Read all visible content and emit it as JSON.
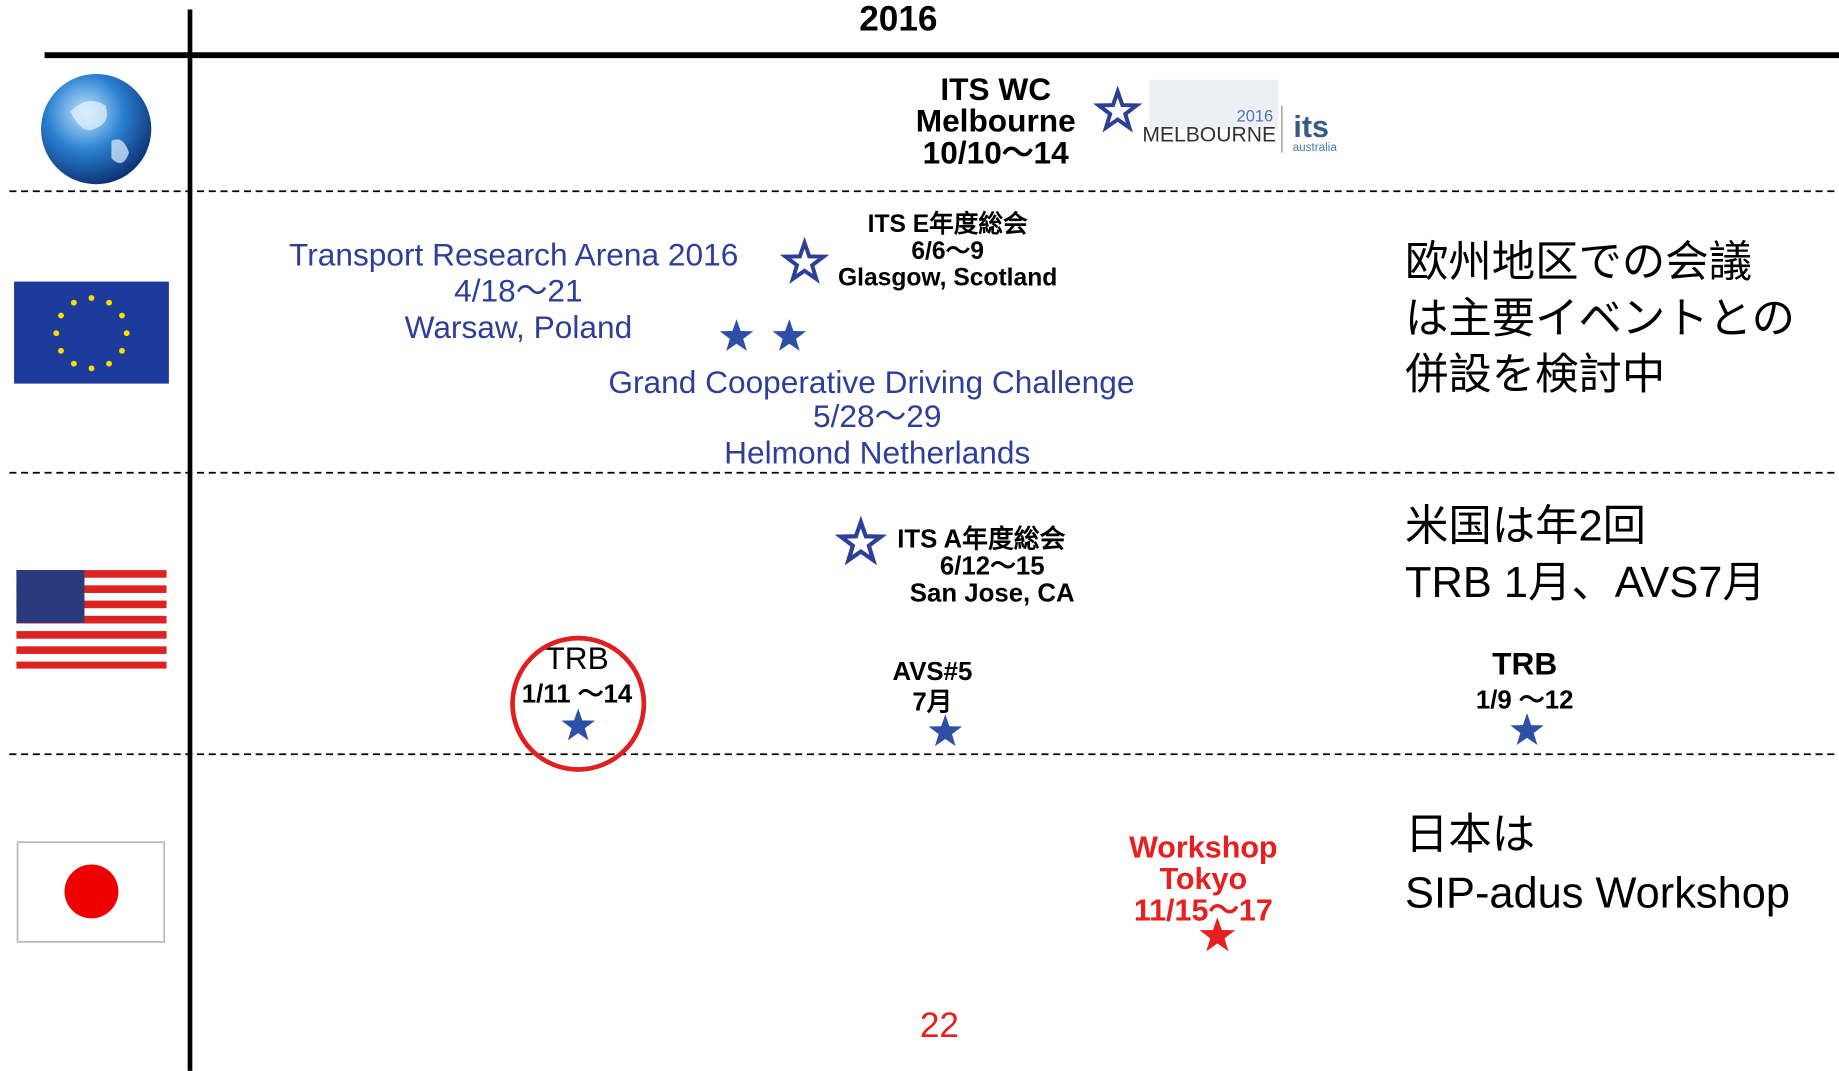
{
  "header": {
    "year": "2016"
  },
  "world": {
    "events": [
      {
        "lines": [
          "ITS WC",
          "Melbourne",
          "10/10～14"
        ]
      }
    ],
    "logo": {
      "year": "2016",
      "city": "MELBOURNE",
      "org": "its",
      "sub": "australia"
    }
  },
  "europe": {
    "events": [
      {
        "lines": [
          "ITS E年度総会",
          "6/6～9",
          "Glasgow, Scotland"
        ]
      },
      {
        "lines": [
          "Transport Research Arena 2016",
          "4/18～21",
          "Warsaw, Poland"
        ]
      },
      {
        "lines": [
          "Grand Cooperative Driving Challenge",
          "5/28～29",
          "Helmond Netherlands"
        ]
      }
    ],
    "note": [
      "欧州地区での会議",
      "は主要イベントとの",
      "併設を検討中"
    ]
  },
  "us": {
    "events": [
      {
        "lines": [
          "ITS A年度総会",
          "6/12～15",
          "San Jose, CA"
        ]
      },
      {
        "lines": [
          "TRB",
          "1/11 ～14"
        ]
      },
      {
        "lines": [
          "AVS#5",
          "7月"
        ]
      },
      {
        "lines": [
          "TRB",
          "1/9 ～12"
        ]
      }
    ],
    "note": [
      "米国は年2回",
      "TRB 1月、AVS7月"
    ]
  },
  "japan": {
    "events": [
      {
        "lines": [
          "Workshop",
          "Tokyo",
          "11/15～17"
        ]
      }
    ],
    "note": [
      "日本は",
      "SIP-adus Workshop"
    ]
  },
  "page_number": "22"
}
